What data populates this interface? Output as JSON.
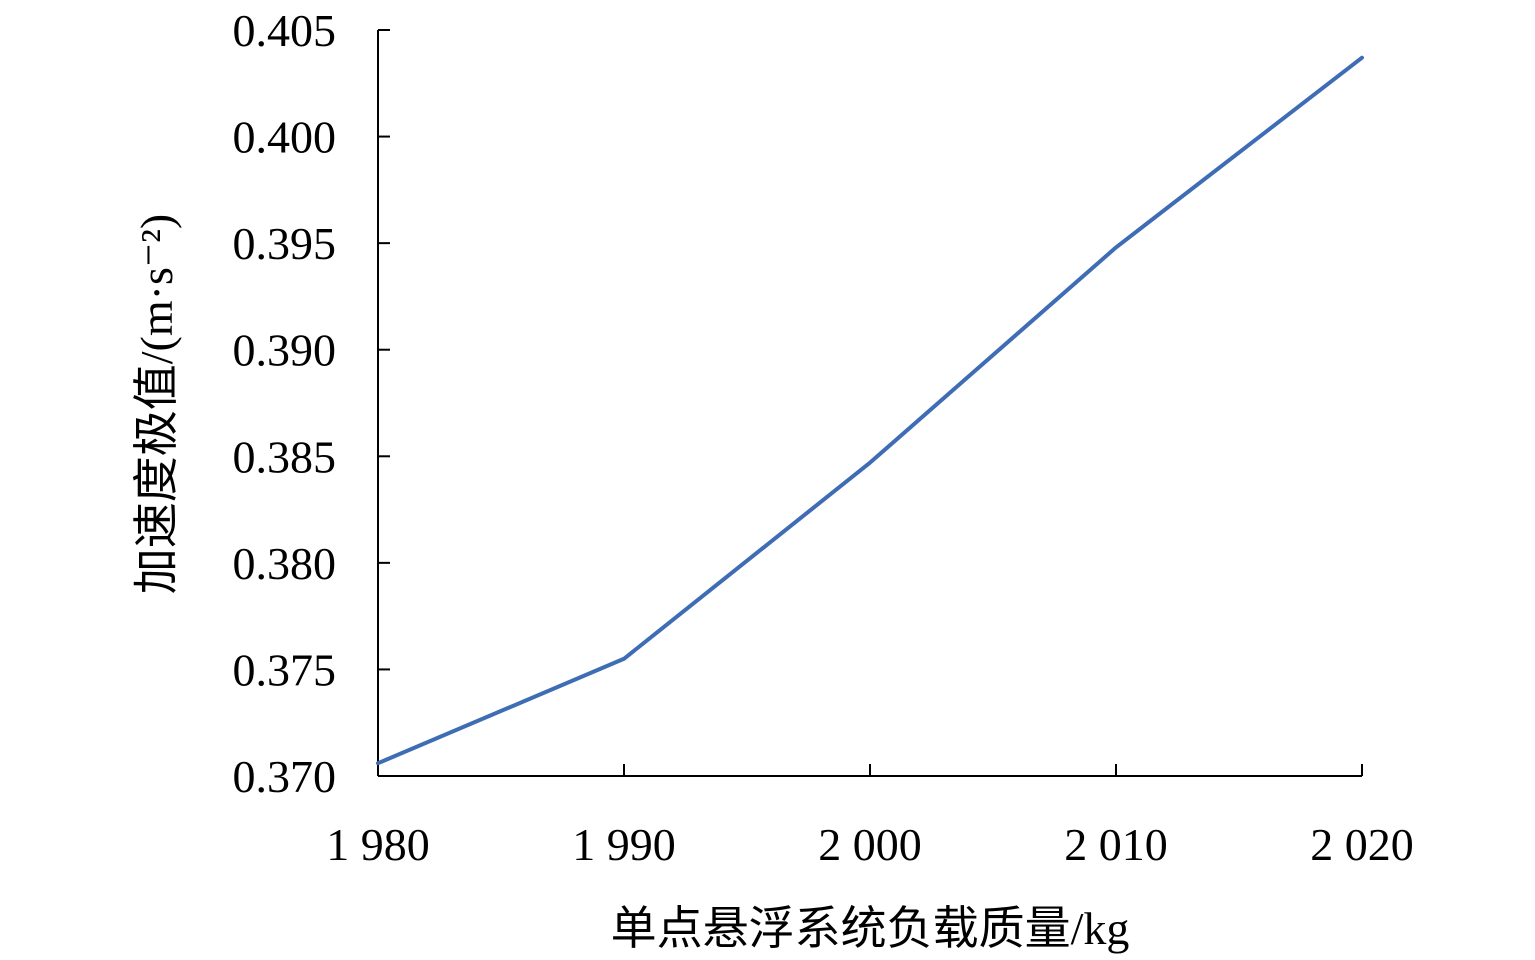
{
  "chart_data": {
    "type": "line",
    "title": "",
    "xlabel": "单点悬浮系统负载质量/kg",
    "ylabel": "加速度极值/(m·s⁻²)",
    "x": [
      1980,
      1990,
      2000,
      2010,
      2020
    ],
    "x_tick_labels": [
      "1 980",
      "1 990",
      "2 000",
      "2 010",
      "2 020"
    ],
    "y_ticks": [
      0.37,
      0.375,
      0.38,
      0.385,
      0.39,
      0.395,
      0.4,
      0.405
    ],
    "y_tick_labels": [
      "0.370",
      "0.375",
      "0.380",
      "0.385",
      "0.390",
      "0.395",
      "0.400",
      "0.405"
    ],
    "xlim": [
      1980,
      2020
    ],
    "ylim": [
      0.37,
      0.405
    ],
    "grid": false,
    "legend": "none",
    "series": [
      {
        "color": "#3e6db5",
        "values": [
          0.3706,
          0.3755,
          0.3847,
          0.3948,
          0.4037
        ]
      }
    ]
  }
}
